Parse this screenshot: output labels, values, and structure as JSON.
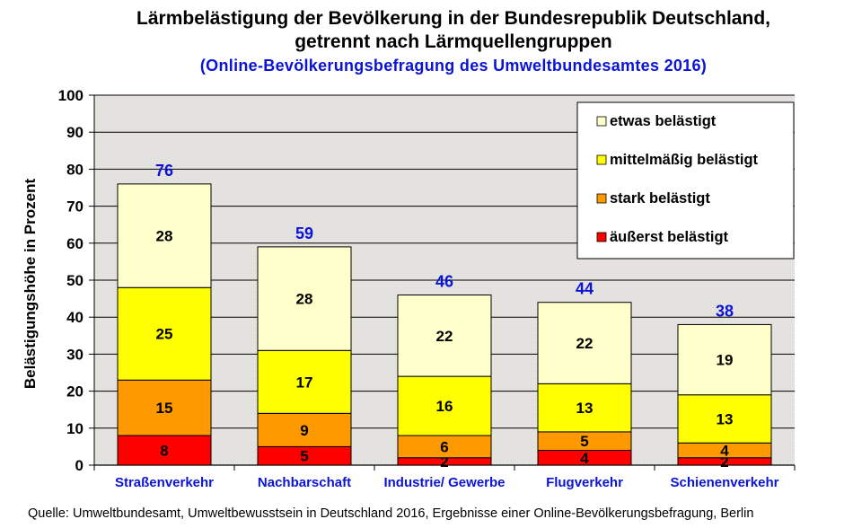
{
  "chart_data": {
    "type": "bar",
    "stacked": true,
    "title_line1": "Lärmbelästigung der Bevölkerung in der Bundesrepublik Deutschland,",
    "title_line2": "getrennt nach Lärmquellengruppen",
    "subtitle": "(Online-Bevölkerungsbefragung des Umweltbundesamtes 2016)",
    "ylabel": "Belästigungshöhe in Prozent",
    "xlabel": "",
    "ylim": [
      0,
      100
    ],
    "yticks": [
      0,
      10,
      20,
      30,
      40,
      50,
      60,
      70,
      80,
      90,
      100
    ],
    "categories": [
      "Straßenverkehr",
      "Nachbarschaft",
      "Industrie/ Gewerbe",
      "Flugverkehr",
      "Schienenverkehr"
    ],
    "series": [
      {
        "name": "äußerst belästigt",
        "color": "#ff0000",
        "values": [
          8,
          5,
          2,
          4,
          2
        ]
      },
      {
        "name": "stark belästigt",
        "color": "#ff9900",
        "values": [
          15,
          9,
          6,
          5,
          4
        ]
      },
      {
        "name": "mittelmäßig belästigt",
        "color": "#ffff00",
        "values": [
          25,
          17,
          16,
          13,
          13
        ]
      },
      {
        "name": "etwas belästigt",
        "color": "#ffffcc",
        "values": [
          28,
          28,
          22,
          22,
          19
        ]
      }
    ],
    "totals": [
      76,
      59,
      46,
      44,
      38
    ],
    "grid": true,
    "legend_position": "top-right",
    "legend_order": [
      "etwas belästigt",
      "mittelmäßig belästigt",
      "stark belästigt",
      "äußerst belästigt"
    ]
  },
  "source": "Quelle: Umweltbundesamt,  Umweltbewusstsein in Deutschland 2016, Ergebnisse einer Online-Bevölkerungsbefragung,  Berlin"
}
